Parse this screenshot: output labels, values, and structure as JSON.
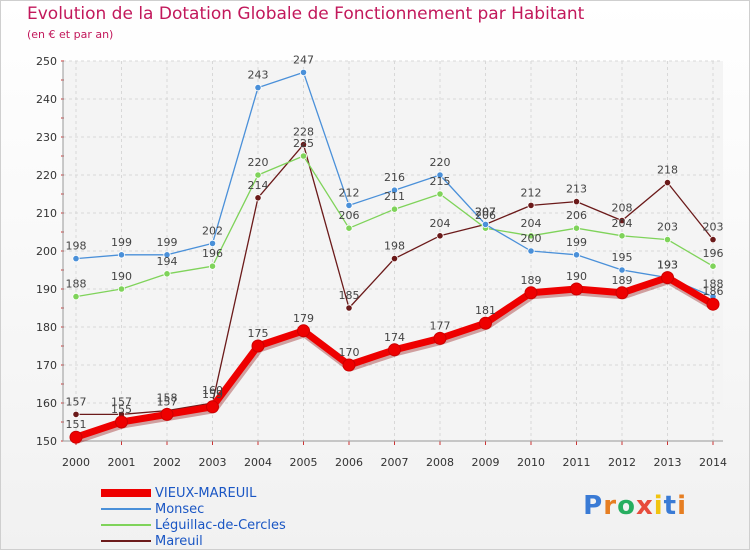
{
  "header": {
    "title": "Evolution de la Dotation Globale de Fonctionnement par Habitant",
    "subtitle": "(en € et par an)"
  },
  "brand": {
    "letters": [
      "P",
      "r",
      "o",
      "x",
      "i",
      "t",
      "i"
    ],
    "colors": [
      "#3a7bd5",
      "#e67e22",
      "#27ae60",
      "#e74c3c",
      "#f1c40f",
      "#3a7bd5",
      "#e67e22"
    ]
  },
  "chart_data": {
    "type": "line",
    "title": "Evolution de la Dotation Globale de Fonctionnement par Habitant",
    "ylabel": "(en € et par an)",
    "xlabel": "",
    "ylim": [
      150,
      250
    ],
    "yticks": [
      150,
      160,
      170,
      180,
      190,
      200,
      210,
      220,
      230,
      240,
      250
    ],
    "grid": true,
    "x": [
      "2000",
      "2001",
      "2002",
      "2003",
      "2004",
      "2005",
      "2006",
      "2007",
      "2008",
      "2009",
      "2010",
      "2011",
      "2012",
      "2013",
      "2014"
    ],
    "series": [
      {
        "name": "Mareuil",
        "color": "#6b1a1a",
        "emphasis": false,
        "values": [
          157,
          157,
          158,
          160,
          214,
          228,
          185,
          198,
          204,
          207,
          212,
          213,
          208,
          218,
          203
        ]
      },
      {
        "name": "Léguillac-de-Cercles",
        "color": "#7fd35a",
        "emphasis": false,
        "values": [
          188,
          190,
          194,
          196,
          220,
          225,
          206,
          211,
          215,
          206,
          204,
          206,
          204,
          203,
          196
        ]
      },
      {
        "name": "Monsec",
        "color": "#4a90d9",
        "emphasis": false,
        "values": [
          198,
          199,
          199,
          202,
          243,
          247,
          212,
          216,
          220,
          207,
          200,
          199,
          195,
          193,
          188
        ]
      },
      {
        "name": "VIEUX-MAREUIL",
        "color": "#ee0000",
        "emphasis": true,
        "values": [
          151,
          155,
          157,
          159,
          175,
          179,
          170,
          174,
          177,
          181,
          189,
          190,
          189,
          193,
          186
        ]
      }
    ],
    "legend_order": [
      "VIEUX-MAREUIL",
      "Monsec",
      "Léguillac-de-Cercles",
      "Mareuil"
    ],
    "legend_position": "bottom-left"
  }
}
